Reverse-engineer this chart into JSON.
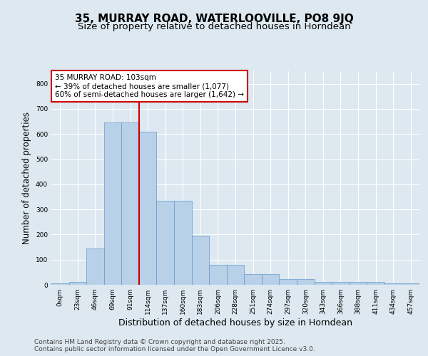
{
  "title": "35, MURRAY ROAD, WATERLOOVILLE, PO8 9JQ",
  "subtitle": "Size of property relative to detached houses in Horndean",
  "xlabel": "Distribution of detached houses by size in Horndean",
  "ylabel": "Number of detached properties",
  "footer": "Contains HM Land Registry data © Crown copyright and database right 2025.\nContains public sector information licensed under the Open Government Licence v3.0.",
  "bar_labels": [
    "0sqm",
    "23sqm",
    "46sqm",
    "69sqm",
    "91sqm",
    "114sqm",
    "137sqm",
    "160sqm",
    "183sqm",
    "206sqm",
    "228sqm",
    "251sqm",
    "274sqm",
    "297sqm",
    "320sqm",
    "343sqm",
    "366sqm",
    "388sqm",
    "411sqm",
    "434sqm",
    "457sqm"
  ],
  "bar_values": [
    5,
    10,
    145,
    645,
    645,
    610,
    335,
    335,
    195,
    80,
    80,
    42,
    42,
    22,
    22,
    10,
    10,
    10,
    10,
    5,
    5
  ],
  "bar_color": "#b8d0e8",
  "bar_edge_color": "#6699cc",
  "vline_x": 4.5,
  "vline_color": "#cc0000",
  "annotation_line1": "35 MURRAY ROAD: 103sqm",
  "annotation_line2": "← 39% of detached houses are smaller (1,077)",
  "annotation_line3": "60% of semi-detached houses are larger (1,642) →",
  "annotation_box_edgecolor": "#cc0000",
  "ylim_max": 850,
  "yticks": [
    0,
    100,
    200,
    300,
    400,
    500,
    600,
    700,
    800
  ],
  "bg_color": "#dde8f0",
  "grid_color": "#ffffff",
  "title_fontsize": 11,
  "subtitle_fontsize": 9.5,
  "xlabel_fontsize": 9,
  "ylabel_fontsize": 8.5,
  "tick_fontsize": 6.5,
  "annot_fontsize": 7.5,
  "footer_fontsize": 6.5
}
